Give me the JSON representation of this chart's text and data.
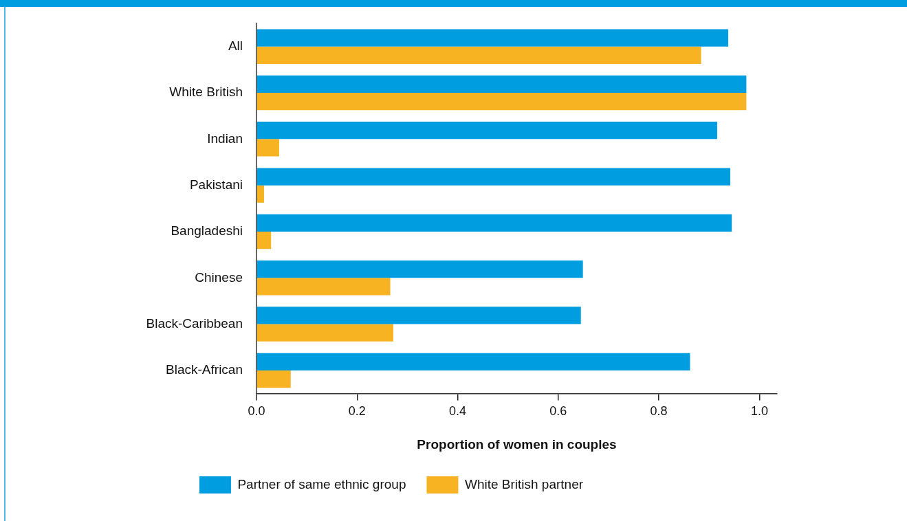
{
  "chart_data": {
    "type": "bar",
    "orientation": "horizontal",
    "xlabel": "Proportion of women in couples",
    "categories": [
      "All",
      "White British",
      "Indian",
      "Pakistani",
      "Bangladeshi",
      "Chinese",
      "Black-Caribbean",
      "Black-African"
    ],
    "series": [
      {
        "name": "Partner of same ethnic group",
        "color": "#009ee0",
        "values": [
          0.938,
          0.974,
          0.916,
          0.942,
          0.945,
          0.649,
          0.645,
          0.862
        ]
      },
      {
        "name": "White British partner",
        "color": "#f7b322",
        "values": [
          0.884,
          0.974,
          0.045,
          0.015,
          0.029,
          0.266,
          0.272,
          0.068
        ]
      }
    ],
    "xlim": [
      0,
      1.035
    ],
    "xticks": [
      {
        "value": 0,
        "label": "0.0"
      },
      {
        "value": 0.2,
        "label": "0.2"
      },
      {
        "value": 0.4,
        "label": "0.4"
      },
      {
        "value": 0.6,
        "label": "0.6"
      },
      {
        "value": 0.8,
        "label": "0.8"
      },
      {
        "value": 1,
        "label": "1.0"
      }
    ],
    "grid": false,
    "legend": "bottom"
  }
}
